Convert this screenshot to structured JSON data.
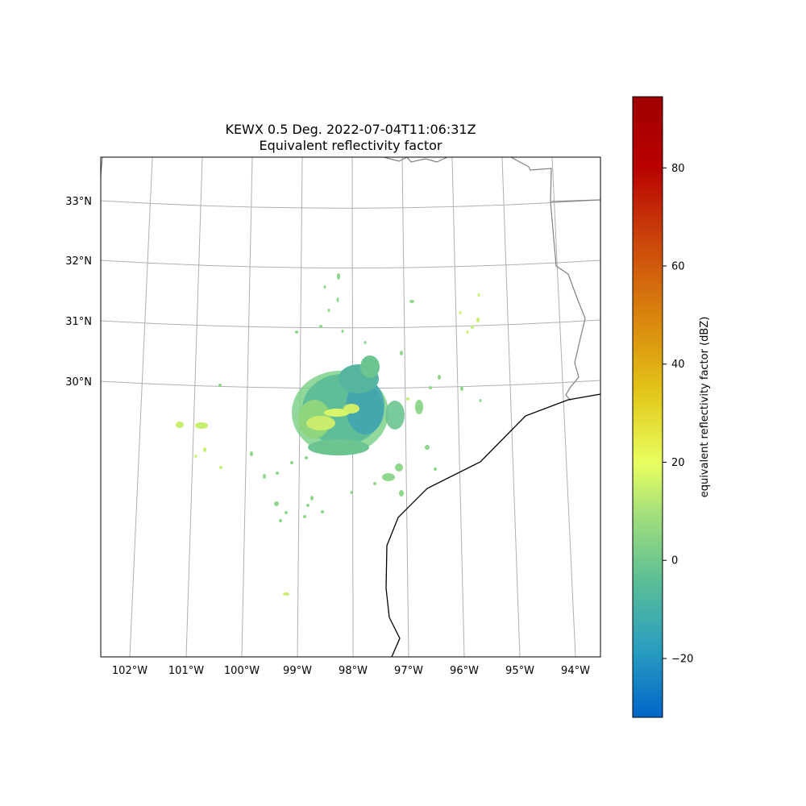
{
  "chart_data": {
    "type": "heatmap",
    "title": "KEWX 0.5 Deg. 2022-07-04T11:06:31Z",
    "subtitle": "Equivalent reflectivity factor",
    "lon_range": [
      -102.5,
      -93.5
    ],
    "lat_range": [
      26.5,
      33.7
    ],
    "x_ticks": [
      "102°W",
      "101°W",
      "100°W",
      "99°W",
      "98°W",
      "97°W",
      "96°W",
      "95°W",
      "94°W"
    ],
    "y_ticks": [
      "30°N",
      "31°N",
      "32°N",
      "33°N"
    ],
    "grid": true,
    "colorbar": {
      "label": "equivalent reflectivity factor (dBZ)",
      "range": [
        -32,
        94.5
      ],
      "ticks": [
        "−20",
        "0",
        "20",
        "40",
        "60",
        "80"
      ],
      "tick_values": [
        -20,
        0,
        20,
        40,
        60,
        80
      ],
      "colormap_name": "pyart_HomeyerRainbow",
      "colormap_stops": [
        "#0066c8",
        "#2a9ec0",
        "#5bbe96",
        "#a6e07a",
        "#e8ff60",
        "#e2c81a",
        "#db8c0e",
        "#cc4a0c",
        "#b80000",
        "#a00000"
      ]
    },
    "radar_site": "KEWX",
    "echo_region_dbz_range": [
      -15,
      25
    ]
  }
}
